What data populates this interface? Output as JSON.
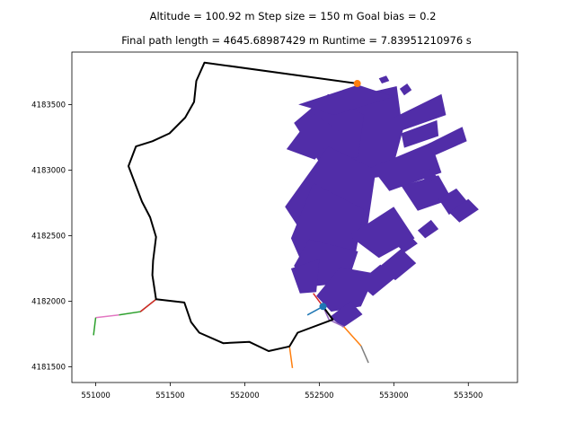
{
  "header": {
    "line1": "Altitude = 100.92 m     Step size = 150 m     Goal bias = 0.2",
    "line2": "Final path length = 4645.68987429 m     Runtime = 7.83951210976 s"
  },
  "chart_data": {
    "type": "line",
    "title": "Altitude = 100.92 m     Step size = 150 m     Goal bias = 0.2",
    "subtitle": "Final path length = 4645.68987429 m     Runtime = 7.83951210976 s",
    "xlabel": "",
    "ylabel": "",
    "xlim": [
      550840,
      553830
    ],
    "ylim": [
      4181380,
      4183900
    ],
    "xticks": [
      551000,
      551500,
      552000,
      552500,
      553000,
      553500
    ],
    "yticks": [
      4181500,
      4182000,
      4182500,
      4183000,
      4183500
    ],
    "grid": false,
    "legend": "none",
    "colors": {
      "path": "#000000",
      "obstacles": "#512da8",
      "start": "#1f77b4",
      "goal": "#ff7f0e"
    },
    "start": {
      "x": 552525,
      "y": 4181960
    },
    "goal": {
      "x": 552755,
      "y": 4183660
    },
    "final_path": [
      [
        552525,
        4181960
      ],
      [
        552590,
        4181860
      ],
      [
        552355,
        4181760
      ],
      [
        552300,
        4181655
      ],
      [
        552160,
        4181620
      ],
      [
        552030,
        4181690
      ],
      [
        551855,
        4181680
      ],
      [
        551695,
        4181760
      ],
      [
        551640,
        4181840
      ],
      [
        551595,
        4181990
      ],
      [
        551405,
        4182015
      ],
      [
        551380,
        4182200
      ],
      [
        551385,
        4182310
      ],
      [
        551405,
        4182490
      ],
      [
        551365,
        4182640
      ],
      [
        551310,
        4182760
      ],
      [
        551250,
        4182940
      ],
      [
        551220,
        4183030
      ],
      [
        551270,
        4183180
      ],
      [
        551380,
        4183220
      ],
      [
        551495,
        4183280
      ],
      [
        551600,
        4183400
      ],
      [
        551660,
        4183520
      ],
      [
        551675,
        4183680
      ],
      [
        551730,
        4183820
      ],
      [
        552755,
        4183660
      ]
    ],
    "tree_branches": [
      {
        "color": "#2ca02c",
        "points": [
          [
            551405,
            4182015
          ],
          [
            551300,
            4181920
          ],
          [
            551155,
            4181895
          ]
        ]
      },
      {
        "color": "#e377c2",
        "points": [
          [
            551155,
            4181895
          ],
          [
            551000,
            4181875
          ]
        ]
      },
      {
        "color": "#2ca02c",
        "points": [
          [
            551000,
            4181875
          ],
          [
            550985,
            4181740
          ]
        ]
      },
      {
        "color": "#d62728",
        "points": [
          [
            551405,
            4182015
          ],
          [
            551300,
            4181920
          ]
        ]
      },
      {
        "color": "#ff7f0e",
        "points": [
          [
            552300,
            4181655
          ],
          [
            552320,
            4181490
          ]
        ]
      },
      {
        "color": "#9467bd",
        "points": [
          [
            552525,
            4181960
          ],
          [
            552565,
            4181860
          ],
          [
            552665,
            4181805
          ]
        ]
      },
      {
        "color": "#ff7f0e",
        "points": [
          [
            552665,
            4181805
          ],
          [
            552780,
            4181660
          ]
        ]
      },
      {
        "color": "#7f7f7f",
        "points": [
          [
            552780,
            4181660
          ],
          [
            552830,
            4181530
          ]
        ]
      },
      {
        "color": "#1f77b4",
        "points": [
          [
            552525,
            4181960
          ],
          [
            552420,
            4181895
          ]
        ]
      },
      {
        "color": "#d62728",
        "points": [
          [
            552525,
            4181960
          ],
          [
            552460,
            4182060
          ]
        ]
      }
    ],
    "obstacles": [
      [
        [
          552560,
          4183520
        ],
        [
          553020,
          4183640
        ],
        [
          553060,
          4183300
        ],
        [
          552980,
          4182960
        ],
        [
          552620,
          4182900
        ],
        [
          552470,
          4183150
        ]
      ],
      [
        [
          552330,
          4183360
        ],
        [
          552560,
          4183580
        ],
        [
          552800,
          4183420
        ],
        [
          552760,
          4183100
        ],
        [
          552500,
          4183060
        ]
      ],
      [
        [
          552270,
          4182720
        ],
        [
          552560,
          4183180
        ],
        [
          552880,
          4183000
        ],
        [
          552820,
          4182540
        ],
        [
          552420,
          4182460
        ]
      ],
      [
        [
          552310,
          4182480
        ],
        [
          552460,
          4182900
        ],
        [
          552800,
          4182700
        ],
        [
          552740,
          4182340
        ],
        [
          552380,
          4182300
        ]
      ],
      [
        [
          552330,
          4182270
        ],
        [
          552430,
          4182470
        ],
        [
          552760,
          4182380
        ],
        [
          552690,
          4182140
        ],
        [
          552420,
          4182110
        ]
      ],
      [
        [
          552480,
          4182040
        ],
        [
          552640,
          4182260
        ],
        [
          552880,
          4182210
        ],
        [
          552780,
          4181960
        ],
        [
          552580,
          4181920
        ]
      ],
      [
        [
          552570,
          4181880
        ],
        [
          552710,
          4182000
        ],
        [
          552790,
          4181900
        ],
        [
          552660,
          4181800
        ]
      ],
      [
        [
          552280,
          4183160
        ],
        [
          552460,
          4183430
        ],
        [
          552630,
          4183300
        ],
        [
          552470,
          4183080
        ]
      ],
      [
        [
          552310,
          4182250
        ],
        [
          552500,
          4182320
        ],
        [
          552480,
          4182070
        ],
        [
          552370,
          4182060
        ]
      ],
      [
        [
          552700,
          4182500
        ],
        [
          553000,
          4182720
        ],
        [
          553140,
          4182480
        ],
        [
          552900,
          4182330
        ]
      ],
      [
        [
          552850,
          4183020
        ],
        [
          553250,
          4183210
        ],
        [
          553320,
          4182980
        ],
        [
          552970,
          4182840
        ]
      ],
      [
        [
          553050,
          4182880
        ],
        [
          553300,
          4182960
        ],
        [
          553390,
          4182780
        ],
        [
          553160,
          4182690
        ]
      ],
      [
        [
          552900,
          4182260
        ],
        [
          553050,
          4182400
        ],
        [
          553150,
          4182290
        ],
        [
          553010,
          4182160
        ]
      ],
      [
        [
          552760,
          4182140
        ],
        [
          552910,
          4182280
        ],
        [
          553000,
          4182170
        ],
        [
          552860,
          4182040
        ]
      ],
      [
        [
          553050,
          4183280
        ],
        [
          553290,
          4183380
        ],
        [
          553300,
          4183260
        ],
        [
          553070,
          4183170
        ]
      ],
      [
        [
          553000,
          4183400
        ],
        [
          553320,
          4183580
        ],
        [
          553350,
          4183420
        ],
        [
          553050,
          4183300
        ]
      ],
      [
        [
          553230,
          4183200
        ],
        [
          553460,
          4183330
        ],
        [
          553490,
          4183220
        ],
        [
          553270,
          4183110
        ]
      ],
      [
        [
          553300,
          4182780
        ],
        [
          553420,
          4182860
        ],
        [
          553500,
          4182750
        ],
        [
          553370,
          4182660
        ]
      ],
      [
        [
          553370,
          4182680
        ],
        [
          553500,
          4182780
        ],
        [
          553570,
          4182700
        ],
        [
          553440,
          4182600
        ]
      ],
      [
        [
          552360,
          4183500
        ],
        [
          552760,
          4183650
        ],
        [
          553000,
          4183560
        ],
        [
          552600,
          4183420
        ]
      ],
      [
        [
          553160,
          4182540
        ],
        [
          553250,
          4182620
        ],
        [
          553300,
          4182550
        ],
        [
          553210,
          4182480
        ]
      ],
      [
        [
          553020,
          4182430
        ],
        [
          553100,
          4182510
        ],
        [
          553160,
          4182440
        ],
        [
          553070,
          4182370
        ]
      ],
      [
        [
          552900,
          4183700
        ],
        [
          552950,
          4183720
        ],
        [
          552970,
          4183680
        ],
        [
          552920,
          4183660
        ]
      ],
      [
        [
          553040,
          4183620
        ],
        [
          553090,
          4183660
        ],
        [
          553120,
          4183610
        ],
        [
          553070,
          4183570
        ]
      ],
      [
        [
          553180,
          4182960
        ],
        [
          553240,
          4183010
        ],
        [
          553290,
          4182950
        ],
        [
          553230,
          4182900
        ]
      ]
    ]
  }
}
